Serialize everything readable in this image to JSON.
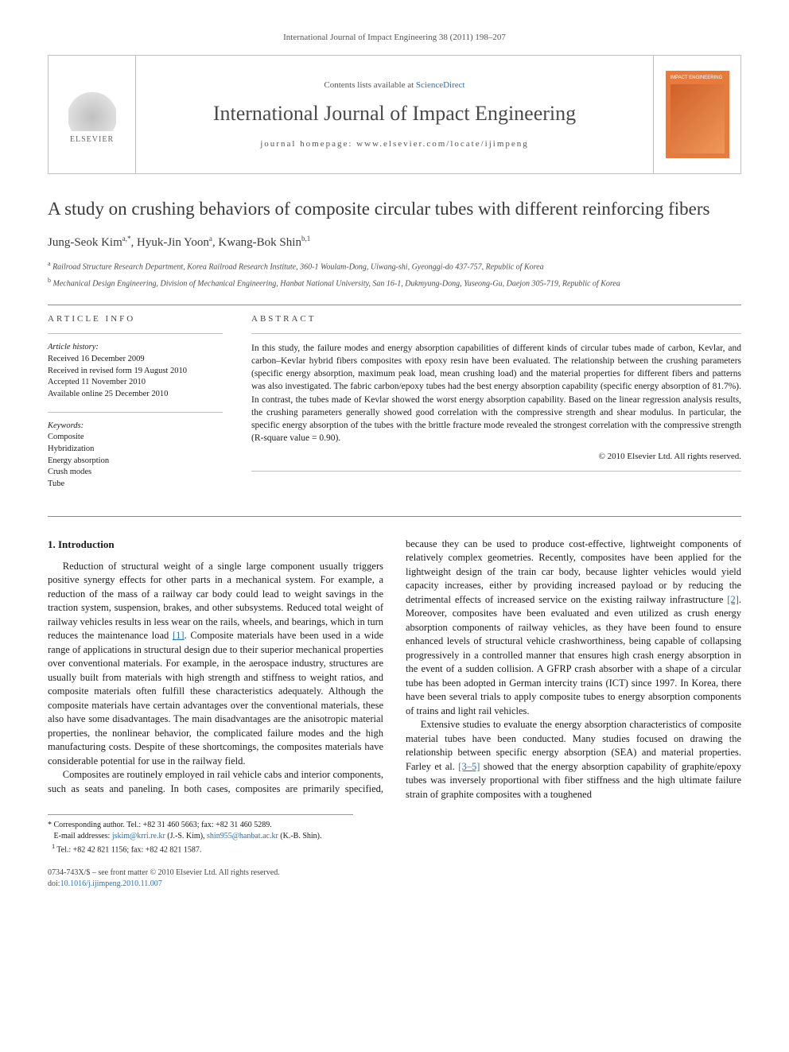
{
  "running_head": "International Journal of Impact Engineering 38 (2011) 198–207",
  "masthead": {
    "publisher_word": "ELSEVIER",
    "contents_prefix": "Contents lists available at ",
    "contents_link": "ScienceDirect",
    "journal_name": "International Journal of Impact Engineering",
    "homepage_label": "journal homepage: www.elsevier.com/locate/ijimpeng",
    "cover_caption": "IMPACT ENGINEERING"
  },
  "article": {
    "title": "A study on crushing behaviors of composite circular tubes with different reinforcing fibers",
    "authors_html": "Jung-Seok Kim",
    "author_1": "Jung-Seok Kim",
    "author_1_marks": "a,*",
    "author_2": "Hyuk-Jin Yoon",
    "author_2_marks": "a",
    "author_3": "Kwang-Bok Shin",
    "author_3_marks": "b,1",
    "affil_a": "Railroad Structure Research Department, Korea Railroad Research Institute, 360-1 Woulam-Dong, Uiwang-shi, Gyeonggi-do 437-757, Republic of Korea",
    "affil_b": "Mechanical Design Engineering, Division of Mechanical Engineering, Hanbat National University, San 16-1, Dukmyung-Dong, Yuseong-Gu, Daejon 305-719, Republic of Korea"
  },
  "info": {
    "section_label": "ARTICLE INFO",
    "history_label": "Article history:",
    "received": "Received 16 December 2009",
    "revised": "Received in revised form 19 August 2010",
    "accepted": "Accepted 11 November 2010",
    "online": "Available online 25 December 2010",
    "keywords_label": "Keywords:",
    "kw1": "Composite",
    "kw2": "Hybridization",
    "kw3": "Energy absorption",
    "kw4": "Crush modes",
    "kw5": "Tube"
  },
  "abstract": {
    "section_label": "ABSTRACT",
    "text": "In this study, the failure modes and energy absorption capabilities of different kinds of circular tubes made of carbon, Kevlar, and carbon–Kevlar hybrid fibers composites with epoxy resin have been evaluated. The relationship between the crushing parameters (specific energy absorption, maximum peak load, mean crushing load) and the material properties for different fibers and patterns was also investigated. The fabric carbon/epoxy tubes had the best energy absorption capability (specific energy absorption of 81.7%). In contrast, the tubes made of Kevlar showed the worst energy absorption capability. Based on the linear regression analysis results, the crushing parameters generally showed good correlation with the compressive strength and shear modulus. In particular, the specific energy absorption of the tubes with the brittle fracture mode revealed the strongest correlation with the compressive strength (R-square value = 0.90).",
    "copyright": "© 2010 Elsevier Ltd. All rights reserved."
  },
  "body": {
    "h_intro": "1.  Introduction",
    "p1": "Reduction of structural weight of a single large component usually triggers positive synergy effects for other parts in a mechanical system. For example, a reduction of the mass of a railway car body could lead to weight savings in the traction system, suspension, brakes, and other subsystems. Reduced total weight of railway vehicles results in less wear on the rails, wheels, and bearings, which in turn reduces the maintenance load ",
    "p1_ref": "[1]",
    "p1b": ". Composite materials have been used in a wide range of applications in structural design due to their superior mechanical properties over conventional materials. For example, in the aerospace industry, structures are usually built from materials with high strength and stiffness to weight ratios, and composite materials often fulfill these characteristics adequately. Although the composite materials have certain advantages over the conventional materials, these also have some disadvantages. The main disadvantages are the anisotropic material properties, the nonlinear behavior, the complicated failure modes and the high manufacturing costs. Despite of these shortcomings, the composites materials have considerable potential for use in the railway field.",
    "p2": "Composites are routinely employed in rail vehicle cabs and interior components, such as seats and paneling. In both cases, composites are primarily specified, because they can be used to produce cost-effective, lightweight components of relatively complex geometries. Recently, composites have been applied for the lightweight design of the train car body, because lighter vehicles would yield capacity increases, either by providing increased payload or by reducing the detrimental effects of increased service on the existing railway infrastructure ",
    "p2_ref": "[2]",
    "p2b": ". Moreover, composites have been evaluated and even utilized as crush energy absorption components of railway vehicles, as they have been found to ensure enhanced levels of structural vehicle crashworthiness, being capable of collapsing progressively in a controlled manner that ensures high crash energy absorption in the event of a sudden collision. A GFRP crash absorber with a shape of a circular tube has been adopted in German intercity trains (ICT) since 1997. In Korea, there have been several trials to apply composite tubes to energy absorption components of trains and light rail vehicles.",
    "p3": "Extensive studies to evaluate the energy absorption characteristics of composite material tubes have been conducted. Many studies focused on drawing the relationship between specific energy absorption (SEA) and material properties. Farley et al. ",
    "p3_ref": "[3–5]",
    "p3b": " showed that the energy absorption capability of graphite/epoxy tubes was inversely proportional with fiber stiffness and the high ultimate failure strain of graphite composites with a toughened"
  },
  "footnotes": {
    "corr": "* Corresponding author. Tel.: +82 31 460 5663; fax: +82 31 460 5289.",
    "emails_label": "E-mail addresses: ",
    "email1": "jskim@krri.re.kr",
    "email1_who": " (J.-S. Kim), ",
    "email2": "shin955@hanbat.ac.kr",
    "email2_who": " (K.-B. Shin).",
    "tel1": "Tel.: +82 42 821 1156; fax: +82 42 821 1587.",
    "tel1_mark": "1 "
  },
  "bottom": {
    "left1": "0734-743X/$ – see front matter © 2010 Elsevier Ltd. All rights reserved.",
    "left2_prefix": "doi:",
    "left2_link": "10.1016/j.ijimpeng.2010.11.007"
  },
  "colors": {
    "link": "#2a6fb5",
    "rule": "#8a8a8a",
    "cover": "#e77a3c"
  }
}
